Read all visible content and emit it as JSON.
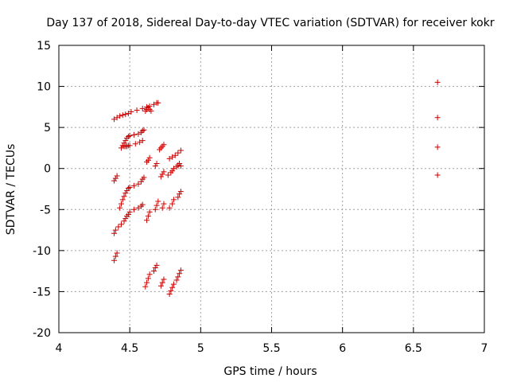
{
  "chart_data": {
    "type": "scatter",
    "title": "Day 137 of 2018, Sidereal Day-to-day VTEC variation (SDTVAR) for receiver kokr",
    "xlabel": "GPS time / hours",
    "ylabel": "SDTVAR / TECUs",
    "xlim": [
      4,
      7
    ],
    "ylim": [
      -20,
      15
    ],
    "xticks": [
      4,
      4.5,
      5,
      5.5,
      6,
      6.5,
      7
    ],
    "xtick_labels": [
      "4",
      "4.5",
      "5",
      "5.5",
      "6",
      "6.5",
      "7"
    ],
    "yticks": [
      -20,
      -15,
      -10,
      -5,
      0,
      5,
      10,
      15
    ],
    "ytick_labels": [
      "-20",
      "-15",
      "-10",
      "-5",
      "0",
      "5",
      "10",
      "15"
    ],
    "grid": true,
    "marker": "+",
    "marker_color": "#cc0000",
    "series": [
      {
        "name": "s1",
        "x": [
          4.39,
          4.41,
          4.43,
          4.45,
          4.47,
          4.49,
          4.51,
          4.55,
          4.59,
          4.62,
          4.64,
          4.67,
          4.69,
          4.7
        ],
        "y": [
          6.0,
          6.2,
          6.4,
          6.5,
          6.6,
          6.7,
          6.9,
          7.1,
          7.3,
          7.5,
          7.6,
          7.8,
          8.0,
          8.0
        ]
      },
      {
        "name": "s2",
        "x": [
          4.61,
          4.62,
          4.63,
          4.64,
          4.65
        ],
        "y": [
          7.0,
          7.2,
          7.4,
          7.2,
          7.0
        ]
      },
      {
        "name": "s3",
        "x": [
          4.44,
          4.45,
          4.46,
          4.47,
          4.48,
          4.49,
          4.5,
          4.53,
          4.56,
          4.58,
          4.59,
          4.6
        ],
        "y": [
          2.5,
          2.8,
          3.1,
          3.4,
          3.7,
          3.9,
          4.0,
          4.1,
          4.2,
          4.4,
          4.6,
          4.7
        ]
      },
      {
        "name": "s4",
        "x": [
          4.46,
          4.47,
          4.48,
          4.49,
          4.5,
          4.54,
          4.57,
          4.59
        ],
        "y": [
          2.7,
          2.7,
          2.7,
          2.8,
          2.8,
          3.0,
          3.2,
          3.4
        ]
      },
      {
        "name": "s5",
        "x": [
          4.62,
          4.63,
          4.64,
          4.68,
          4.69,
          4.71,
          4.72,
          4.73,
          4.74,
          4.78,
          4.8,
          4.82,
          4.84,
          4.86
        ],
        "y": [
          0.8,
          1.0,
          1.3,
          0.3,
          0.6,
          2.3,
          2.5,
          2.7,
          2.9,
          1.2,
          1.4,
          1.6,
          1.9,
          2.2
        ]
      },
      {
        "name": "s6",
        "x": [
          4.39,
          4.4,
          4.41,
          4.72,
          4.73,
          4.74,
          4.77,
          4.79,
          4.8,
          4.81,
          4.83,
          4.84,
          4.85,
          4.86
        ],
        "y": [
          -1.5,
          -1.2,
          -0.9,
          -1.0,
          -0.7,
          -0.4,
          -0.8,
          -0.5,
          -0.3,
          0.0,
          0.2,
          0.4,
          0.6,
          0.3
        ]
      },
      {
        "name": "s7",
        "x": [
          4.43,
          4.44,
          4.45,
          4.46,
          4.47,
          4.48,
          4.49,
          4.5,
          4.53,
          4.56,
          4.58,
          4.59,
          4.6
        ],
        "y": [
          -4.8,
          -4.3,
          -3.8,
          -3.4,
          -3.0,
          -2.7,
          -2.4,
          -2.3,
          -2.1,
          -1.9,
          -1.6,
          -1.3,
          -1.1
        ]
      },
      {
        "name": "s8",
        "x": [
          4.62,
          4.63,
          4.64,
          4.68,
          4.69,
          4.7,
          4.73,
          4.74,
          4.78,
          4.8,
          4.81,
          4.84,
          4.85,
          4.86
        ],
        "y": [
          -6.3,
          -5.8,
          -5.3,
          -5.0,
          -4.5,
          -4.0,
          -4.8,
          -4.3,
          -4.8,
          -4.3,
          -3.8,
          -3.5,
          -3.1,
          -2.8
        ]
      },
      {
        "name": "s9",
        "x": [
          4.39,
          4.4,
          4.42,
          4.44,
          4.46,
          4.47,
          4.48,
          4.49,
          4.5,
          4.53,
          4.56,
          4.58,
          4.59
        ],
        "y": [
          -7.9,
          -7.5,
          -7.1,
          -6.8,
          -6.4,
          -6.1,
          -5.8,
          -5.6,
          -5.3,
          -5.0,
          -4.8,
          -4.6,
          -4.4
        ]
      },
      {
        "name": "s10",
        "x": [
          4.39,
          4.4,
          4.41
        ],
        "y": [
          -11.2,
          -10.7,
          -10.3
        ]
      },
      {
        "name": "s11",
        "x": [
          4.61,
          4.62,
          4.63,
          4.64,
          4.67,
          4.68,
          4.69,
          4.72,
          4.73,
          4.74
        ],
        "y": [
          -14.4,
          -13.9,
          -13.4,
          -12.9,
          -12.5,
          -12.1,
          -11.8,
          -14.3,
          -13.9,
          -13.5
        ]
      },
      {
        "name": "s12",
        "x": [
          4.78,
          4.79,
          4.8,
          4.81,
          4.83,
          4.84,
          4.85,
          4.86
        ],
        "y": [
          -15.3,
          -14.9,
          -14.5,
          -14.1,
          -13.6,
          -13.2,
          -12.8,
          -12.4
        ]
      },
      {
        "name": "s13",
        "x": [
          6.67,
          6.67,
          6.67,
          6.67
        ],
        "y": [
          10.5,
          6.2,
          2.6,
          -0.8
        ]
      }
    ]
  }
}
